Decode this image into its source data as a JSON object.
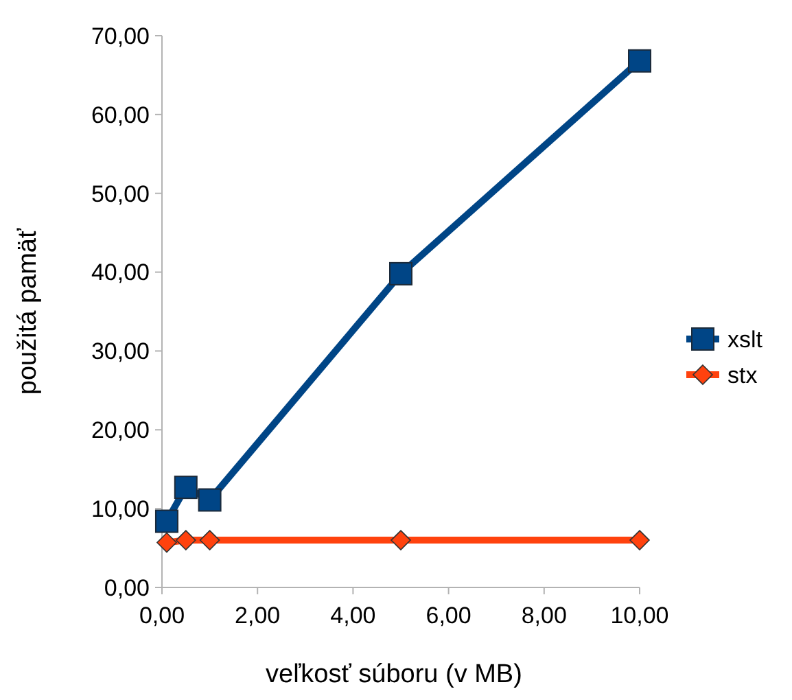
{
  "chart_data": {
    "type": "line",
    "xlabel": "veľkosť súboru (v MB)",
    "ylabel": "použitá pamäť",
    "x": [
      0.1,
      0.5,
      1,
      5,
      10
    ],
    "series": [
      {
        "name": "xslt",
        "color": "#004586",
        "values": [
          8.4,
          12.7,
          11.1,
          39.8,
          66.8
        ],
        "marker": "square"
      },
      {
        "name": "stx",
        "color": "#ff420e",
        "values": [
          5.7,
          6,
          6,
          6,
          6
        ],
        "marker": "diamond"
      }
    ],
    "xlim": [
      0,
      10
    ],
    "xticks": [
      {
        "value": 0,
        "label": "0,00"
      },
      {
        "value": 2,
        "label": "2,00"
      },
      {
        "value": 4,
        "label": "4,00"
      },
      {
        "value": 6,
        "label": "6,00"
      },
      {
        "value": 8,
        "label": "8,00"
      },
      {
        "value": 10,
        "label": "10,00"
      }
    ],
    "ylim": [
      0,
      70
    ],
    "yticks": [
      {
        "value": 0,
        "label": "0,00"
      },
      {
        "value": 10,
        "label": "10,00"
      },
      {
        "value": 20,
        "label": "20,00"
      },
      {
        "value": 30,
        "label": "30,00"
      },
      {
        "value": 40,
        "label": "40,00"
      },
      {
        "value": 50,
        "label": "50,00"
      },
      {
        "value": 60,
        "label": "60,00"
      },
      {
        "value": 70,
        "label": "70,00"
      }
    ],
    "legend": "right",
    "line_style": "solid"
  }
}
